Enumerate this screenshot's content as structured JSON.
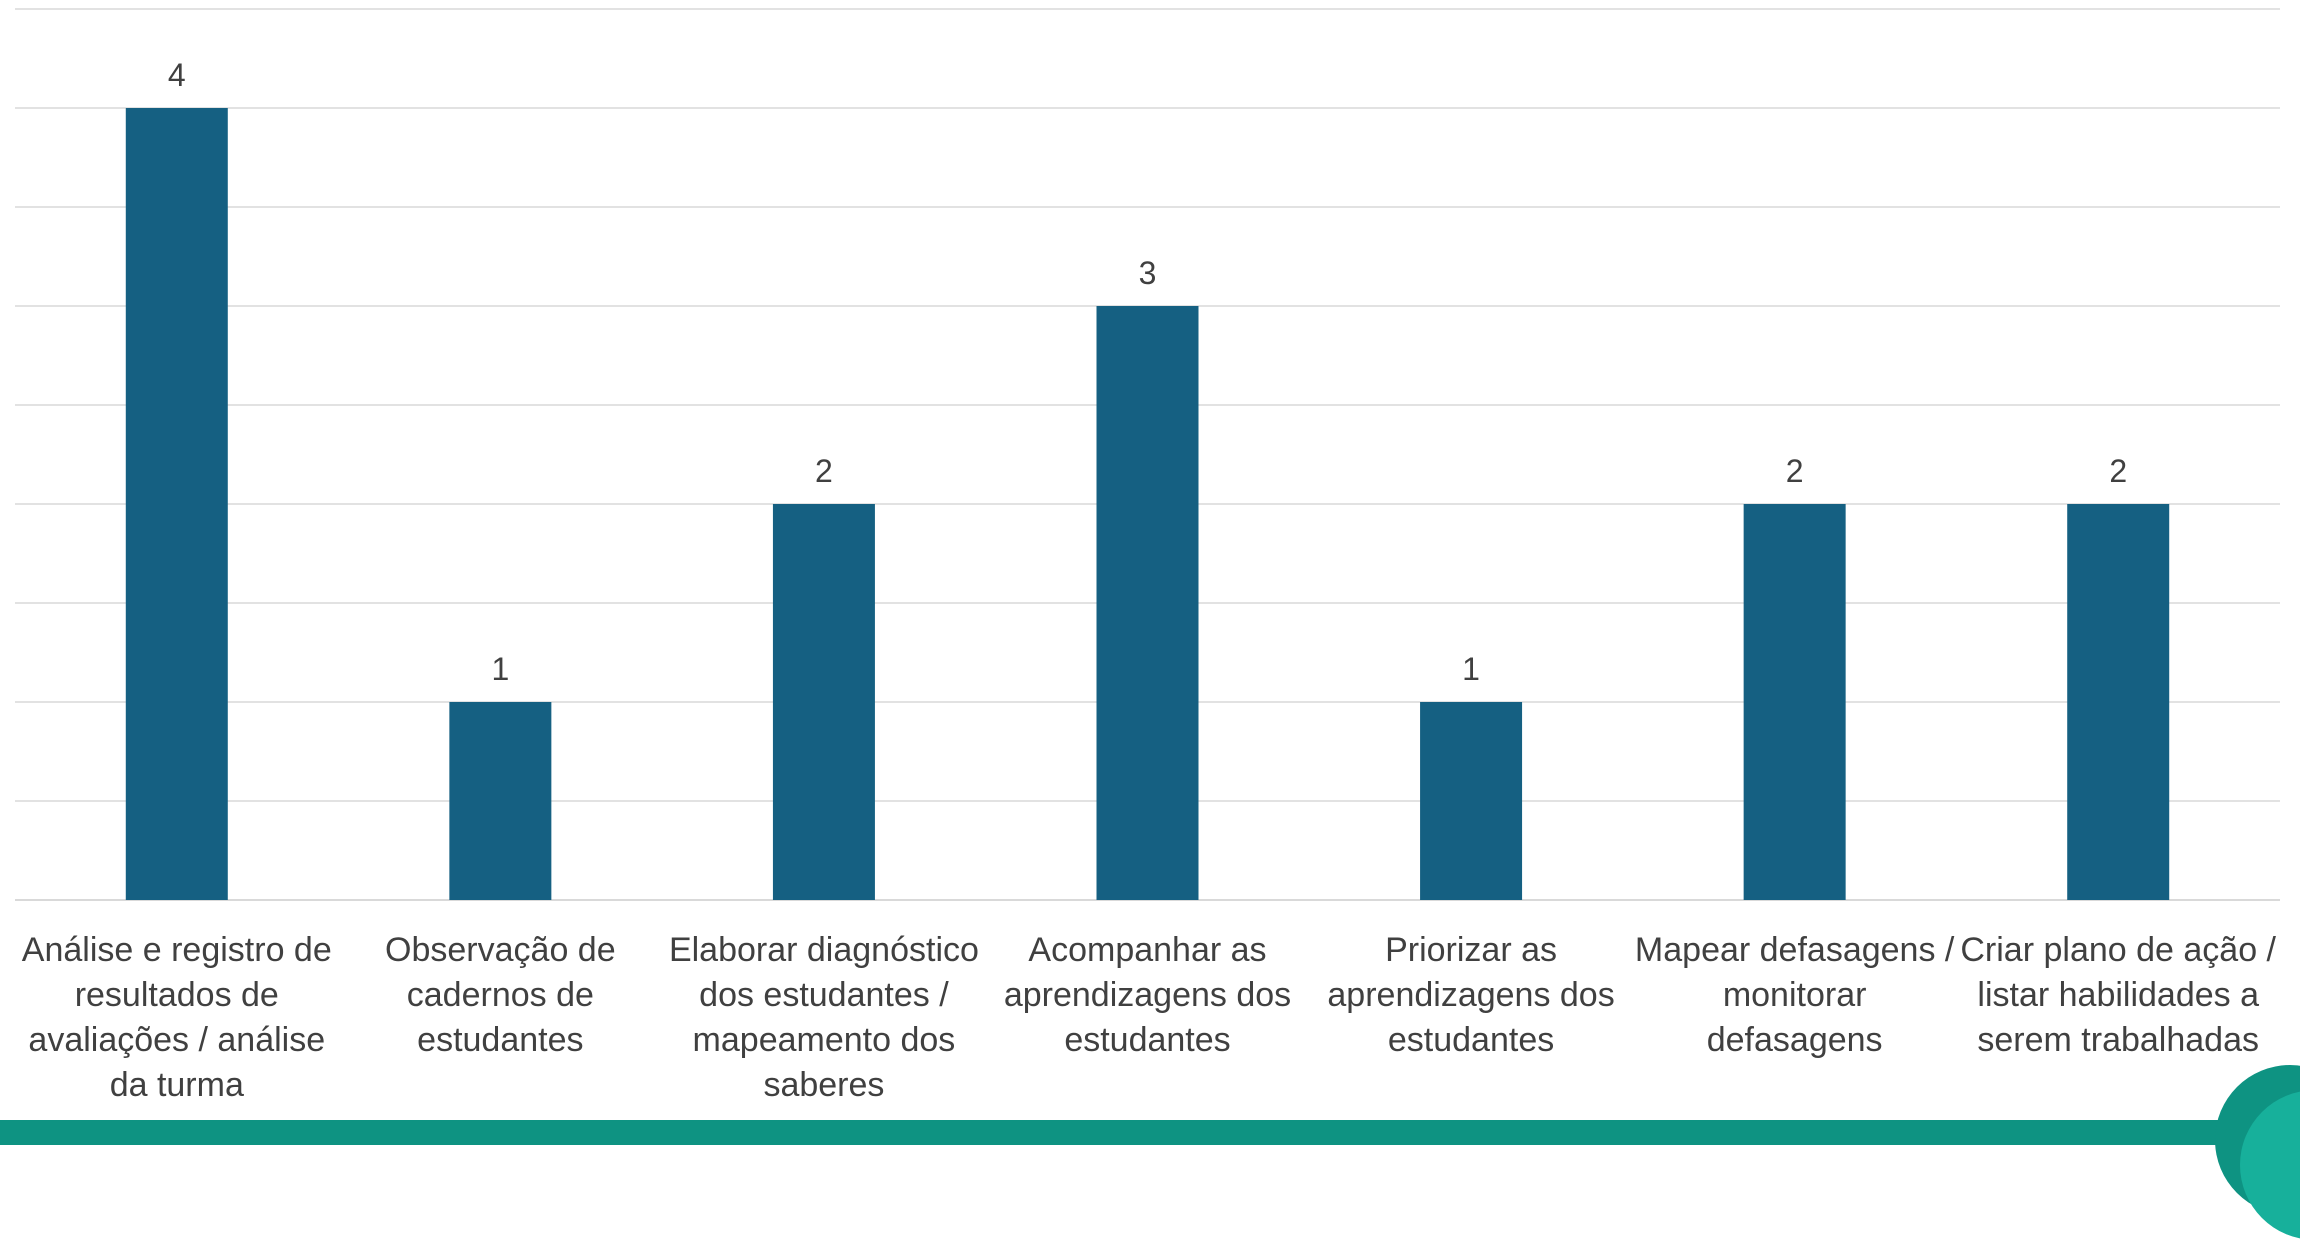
{
  "colors": {
    "bar": "#156082",
    "grid": "#d9d9d9",
    "label_text": "#404040",
    "footer": "#0e9382",
    "footer_light": "#17b09b"
  },
  "chart_data": {
    "type": "bar",
    "title": "",
    "xlabel": "",
    "ylabel": "",
    "ylim": [
      0,
      4.5
    ],
    "grid": true,
    "legend": "none",
    "categories": [
      "Análise e registro de resultados de avaliações / análise da turma",
      "Observação de cadernos de estudantes",
      "Elaborar diagnóstico dos estudantes / mapeamento dos saberes",
      "Acompanhar as aprendizagens dos estudantes",
      "Priorizar as aprendizagens dos estudantes",
      "Mapear defasagens / monitorar defasagens",
      "Criar plano de ação / listar habilidades a serem trabalhadas"
    ],
    "values": [
      4,
      1,
      2,
      3,
      1,
      2,
      2
    ],
    "data_labels": [
      "4",
      "1",
      "2",
      "3",
      "1",
      "2",
      "2"
    ]
  }
}
